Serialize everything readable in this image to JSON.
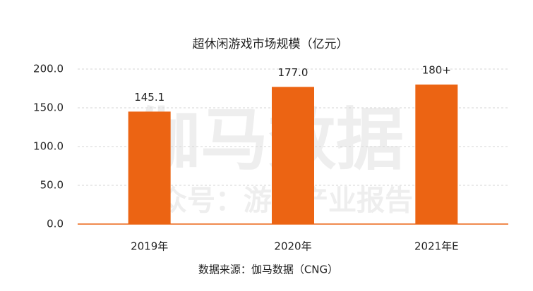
{
  "chart_data": {
    "type": "bar",
    "title": "超休闲游戏市场规模（亿元）",
    "categories": [
      "2019年",
      "2020年",
      "2021年E"
    ],
    "values": [
      145.1,
      177.0,
      180
    ],
    "value_labels": [
      "145.1",
      "177.0",
      "180+"
    ],
    "color": "#ec6413",
    "ylim": [
      0,
      200
    ],
    "yticks": [
      {
        "value": 0,
        "label": "0.0"
      },
      {
        "value": 50,
        "label": "50.0"
      },
      {
        "value": 100,
        "label": "100.0"
      },
      {
        "value": 150,
        "label": "150.0"
      },
      {
        "value": 200,
        "label": "200.0"
      }
    ],
    "grid": true,
    "source": "数据来源：伽马数据（CNG）",
    "watermark": "伽马数据",
    "watermark_subtitle": "公众号：游戏产业报告"
  }
}
